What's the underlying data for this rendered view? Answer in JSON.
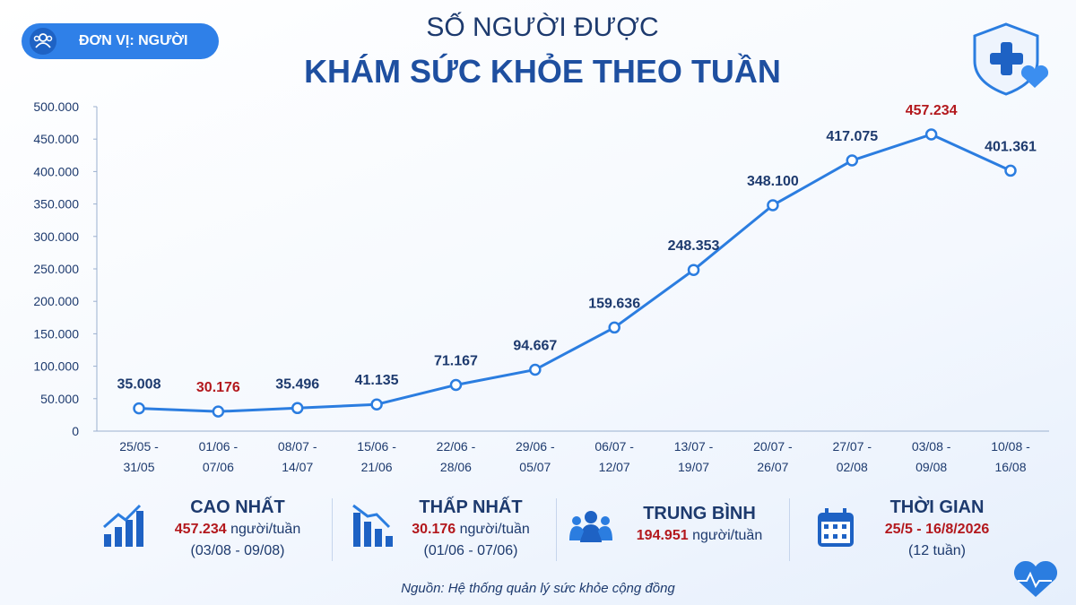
{
  "chart_data": {
    "type": "line",
    "title": [
      "SỐ NGƯỜI ĐƯỢC",
      "KHÁM SỨC KHỎE THEO TUẦN"
    ],
    "categories": [
      [
        "25/05 -",
        "31/05"
      ],
      [
        "01/06 -",
        "07/06"
      ],
      [
        "08/07 -",
        "14/07"
      ],
      [
        "15/06 -",
        "21/06"
      ],
      [
        "22/06 -",
        "28/06"
      ],
      [
        "29/06 -",
        "05/07"
      ],
      [
        "06/07 -",
        "12/07"
      ],
      [
        "13/07 -",
        "19/07"
      ],
      [
        "20/07 -",
        "26/07"
      ],
      [
        "27/07 -",
        "02/08"
      ],
      [
        "03/08 -",
        "09/08"
      ],
      [
        "10/08 -",
        "16/08"
      ]
    ],
    "values": [
      35008,
      30176,
      35496,
      41135,
      71167,
      94667,
      159636,
      248353,
      348100,
      417075,
      457234,
      401361
    ],
    "value_labels": [
      "35.008",
      "30.176",
      "35.496",
      "41.135",
      "71.167",
      "94.667",
      "159.636",
      "248.353",
      "348.100",
      "417.075",
      "457.234",
      "401.361"
    ],
    "color": "#2b7de0",
    "label_color": "#1d3a6e",
    "highlight_label_color": "#b3181d",
    "ylim": [
      0,
      500000
    ],
    "yticks": [
      0,
      {
        "value": 50000,
        "label": "50.000"
      },
      {
        "value": 100000,
        "label": "100.000"
      },
      {
        "value": 150000,
        "label": "150.000"
      },
      {
        "value": 200000,
        "label": "200.000"
      },
      {
        "value": 250000,
        "label": "250.000"
      },
      {
        "value": 300000,
        "label": "300.000"
      },
      {
        "value": 350000,
        "label": "350.000"
      },
      {
        "value": 400000,
        "label": "400.000"
      },
      {
        "value": 450000,
        "label": "450.000"
      },
      {
        "value": 500000,
        "label": "500.000"
      }
    ],
    "grid": false
  },
  "badge": "ĐƠN VỊ: NGƯỜI",
  "summary": [
    {
      "title": "CAO NHẤT",
      "value": "457.234",
      "unit": "người/tuần",
      "note": "(03/08 - 09/08)"
    },
    {
      "title": "THẤP NHẤT",
      "value": "30.176",
      "unit": "người/tuần",
      "note": "(01/06 - 07/06)"
    },
    {
      "title": "TRUNG BÌNH",
      "value": "194.951",
      "unit": "người/tuần"
    },
    {
      "title": "THỜI GIAN",
      "value": "25/5 - 16/8/2026",
      "note": "(12 tuần)"
    }
  ],
  "source": "Nguồn: Hệ thống quản lý sức khỏe cộng đồng"
}
